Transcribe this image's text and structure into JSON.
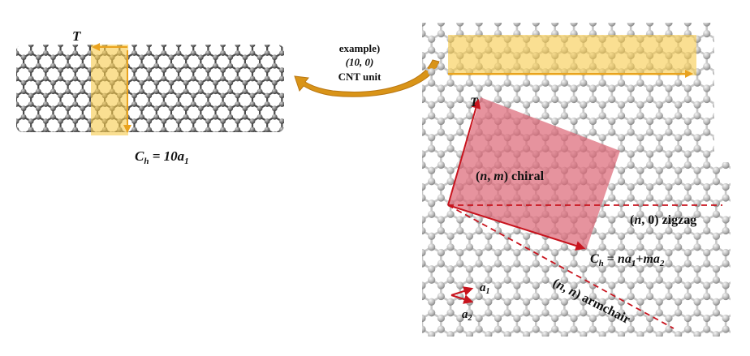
{
  "nanotube": {
    "axis_label": "T",
    "circumference_label": {
      "main": "C",
      "sub": "h",
      "eq": " = 10a",
      "sub2": "1"
    }
  },
  "example_caption": {
    "line1": "example)",
    "line2": "(10, 0)",
    "line3": "CNT unit"
  },
  "sheet": {
    "translation_label": "T",
    "chiral_label": {
      "open": "(",
      "n": "n",
      "comma": ", ",
      "m": "m",
      "close": ") chiral"
    },
    "zigzag_label": {
      "open": "(",
      "n": "n",
      "rest": ", 0) zigzag"
    },
    "armchair_label": {
      "open": "(",
      "n1": "n",
      "comma": ", ",
      "n2": "n",
      "close": ") armchair"
    },
    "chiral_vector_label": {
      "c": "C",
      "h": "h",
      "eq": " = ",
      "n": "n",
      "a1": "a",
      "s1": "1",
      "plus": "+",
      "m": "m",
      "a2": "a",
      "s2": "2"
    },
    "basis_a1": {
      "a": "a",
      "s": "1"
    },
    "basis_a2": {
      "a": "a",
      "s": "2"
    }
  },
  "colors": {
    "highlight_yellow": "#f6c94a",
    "highlight_yellow_stroke": "#e9a21e",
    "chiral_cell": "#dd6a78",
    "vector_red": "#c8141e",
    "curved_arrow": "#d99418",
    "atom": "#b9b9b9",
    "bond_tube": "#4a4a4a",
    "bond_sheet": "#c7c7c7"
  }
}
